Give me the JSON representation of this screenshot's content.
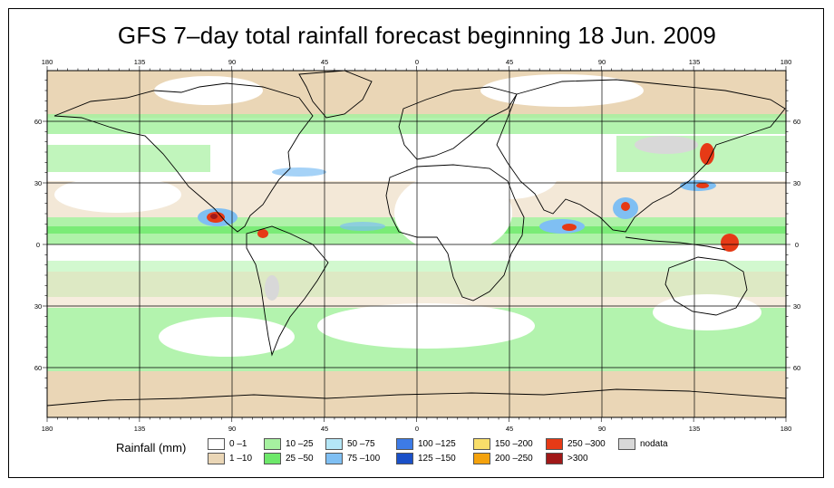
{
  "title": "GFS 7–day total rainfall forecast beginning 18 Jun. 2009",
  "axes": {
    "lon_labels": [
      "180",
      "135",
      "90",
      "45",
      "0",
      "45",
      "90",
      "135",
      "180"
    ],
    "lat_labels": [
      "60",
      "30",
      "0",
      "30",
      "60"
    ]
  },
  "legend": {
    "title": "Rainfall (mm)",
    "items": [
      {
        "label": "0 –1",
        "color": "#ffffff"
      },
      {
        "label": "1 –10",
        "color": "#ead6b6"
      },
      {
        "label": "10 –25",
        "color": "#a6f1a0"
      },
      {
        "label": "25 –50",
        "color": "#6de86a"
      },
      {
        "label": "50 –75",
        "color": "#b4e6f6"
      },
      {
        "label": "75 –100",
        "color": "#7fbff3"
      },
      {
        "label": "100 –125",
        "color": "#3d7be6"
      },
      {
        "label": "125 –150",
        "color": "#1a50c8"
      },
      {
        "label": "150 –200",
        "color": "#f8de6a"
      },
      {
        "label": "200 –250",
        "color": "#f4a20d"
      },
      {
        "label": "250 –300",
        "color": "#e63a16"
      },
      {
        "label": ">300",
        "color": "#a01818"
      },
      {
        "label": "nodata",
        "color": "#d8d8d8"
      }
    ]
  },
  "map_layers": {
    "polar_band": "#ead6b6",
    "storm_tracks": "#a6f1a0",
    "heavy_rain": "#6de86a",
    "very_heavy": "#7fbff3",
    "extreme": "#e63a16",
    "peak": "#a01818",
    "nodata": "#d8d8d8"
  }
}
